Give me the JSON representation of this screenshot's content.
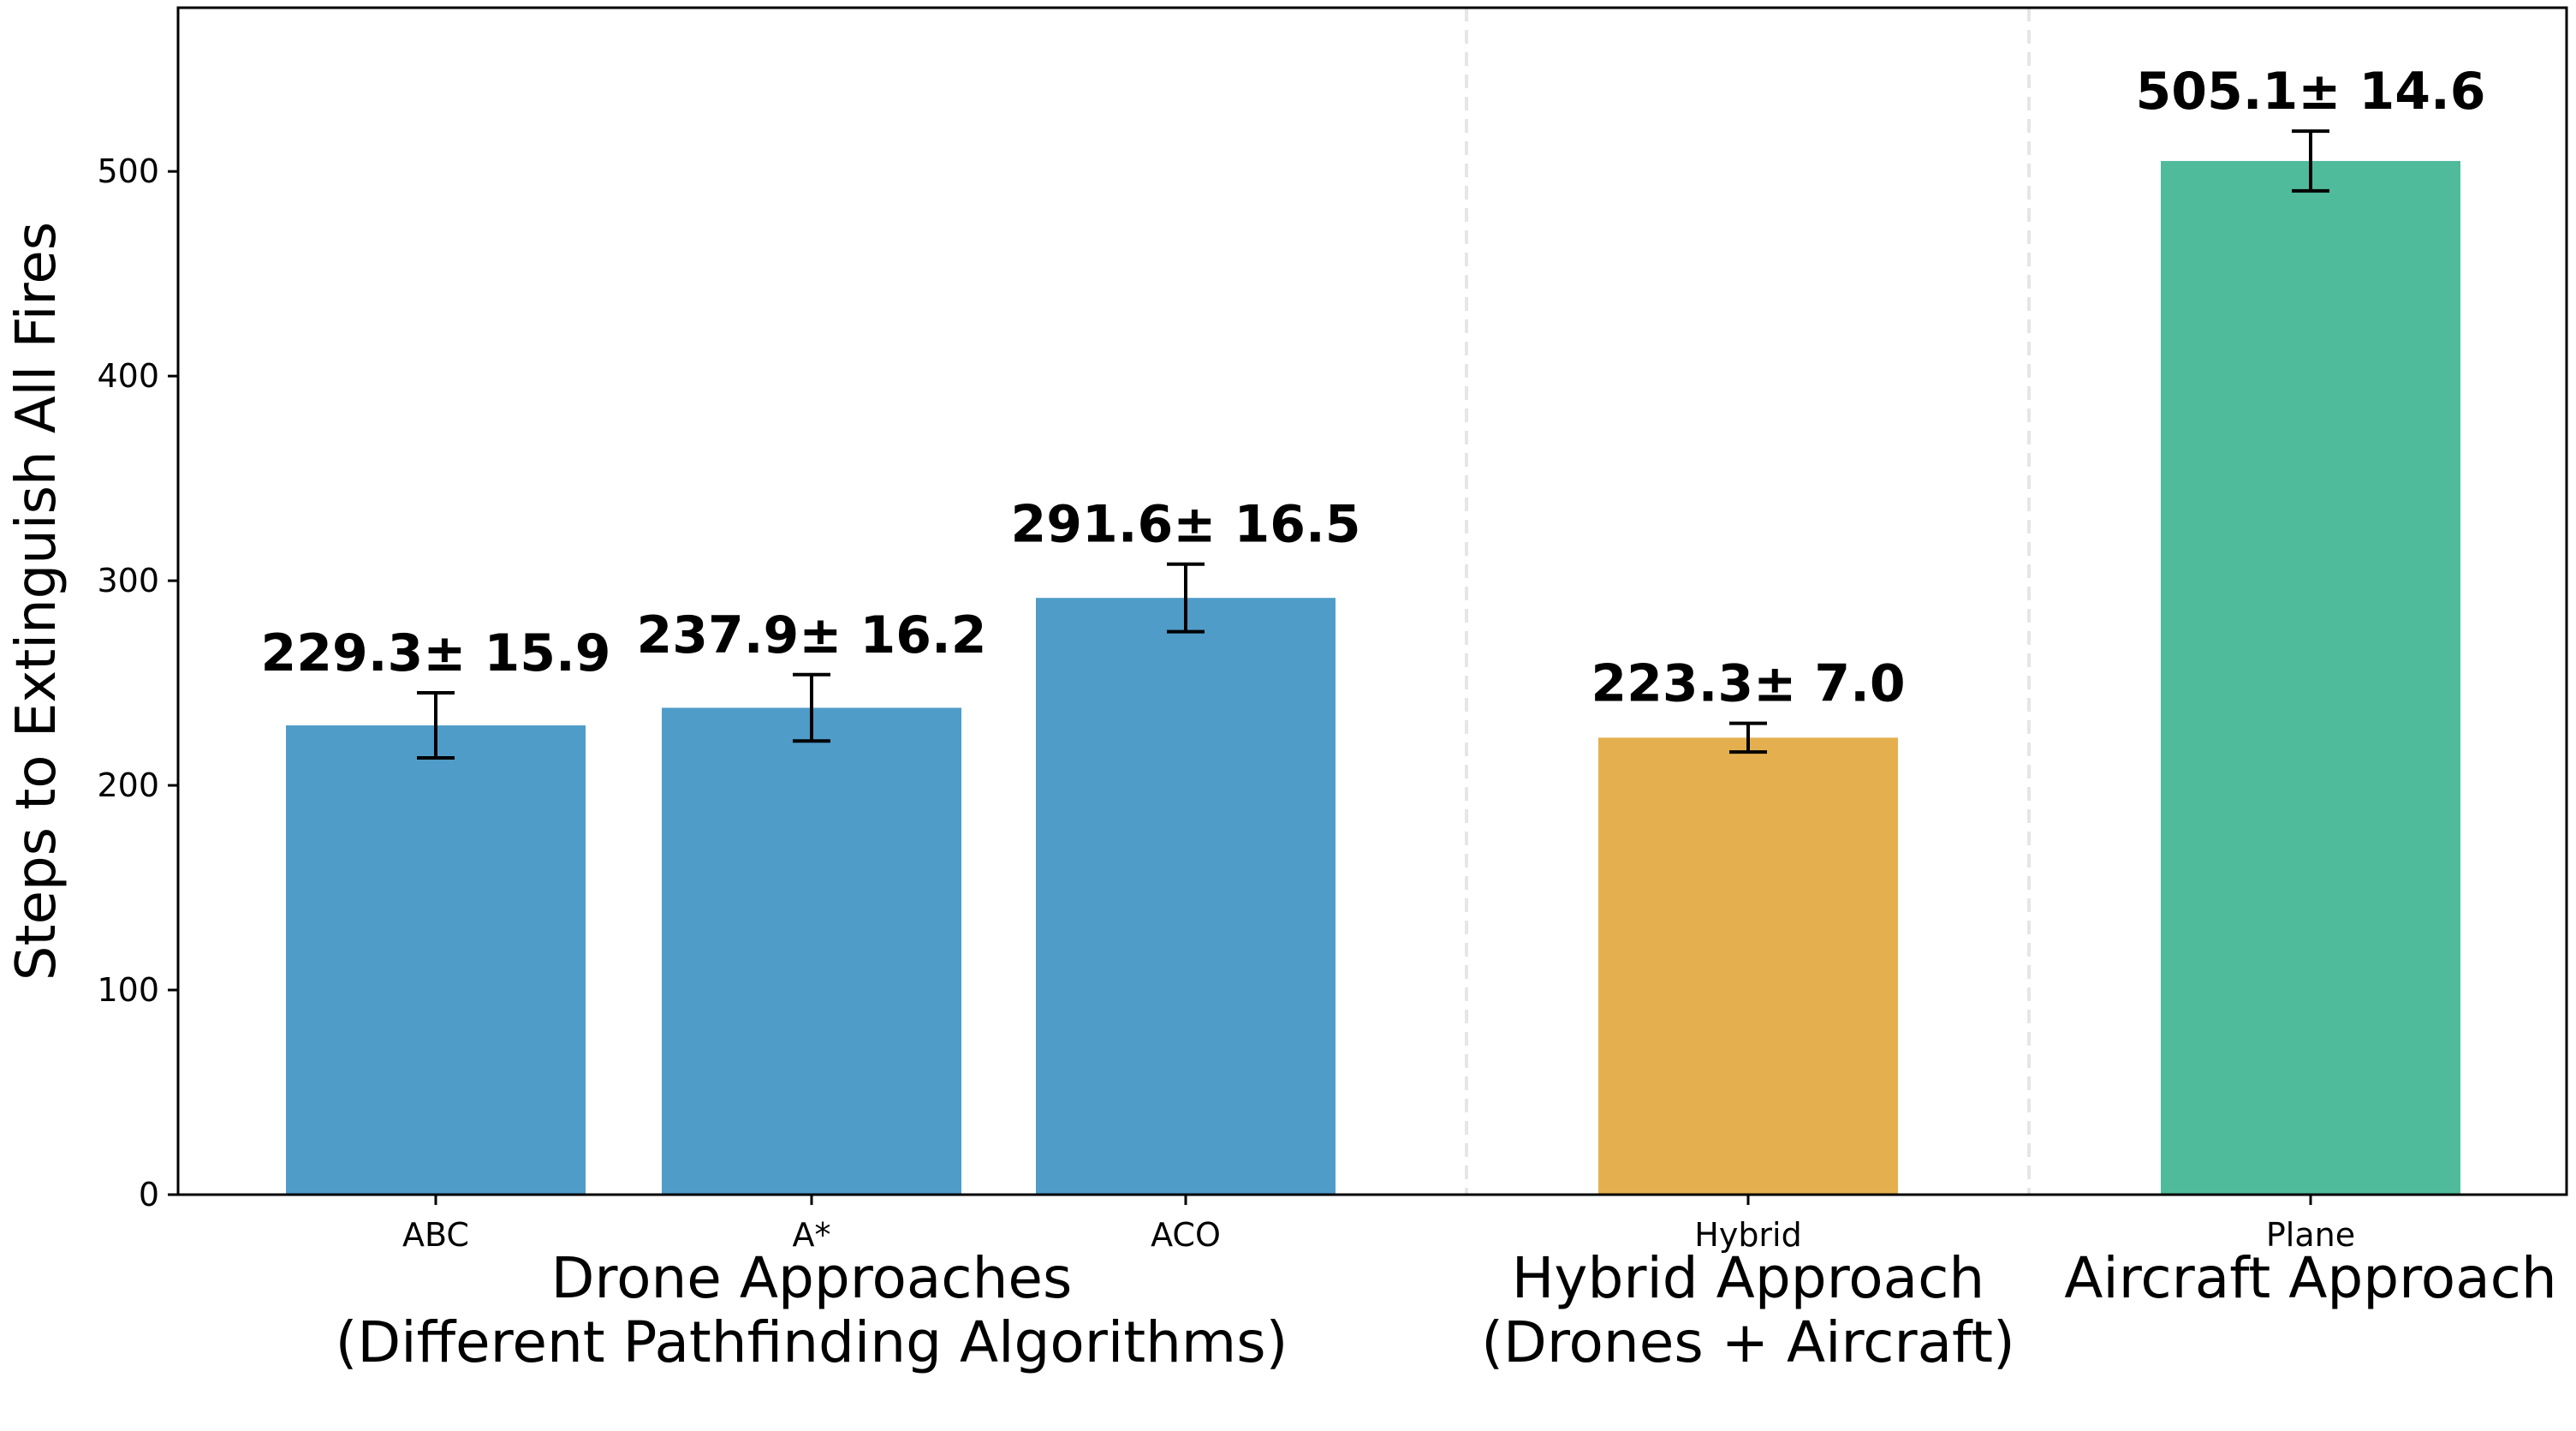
{
  "chart_data": {
    "type": "bar",
    "categories": [
      "ABC",
      "A*",
      "ACO",
      "Hybrid",
      "Plane"
    ],
    "values": [
      229.3,
      237.9,
      291.6,
      223.3,
      505.1
    ],
    "errors": [
      15.9,
      16.2,
      16.5,
      7.0,
      14.6
    ],
    "value_labels": [
      "229.3± 15.9",
      "237.9± 16.2",
      "291.6± 16.5",
      "223.3± 7.0",
      "505.1± 14.6"
    ],
    "bar_colors": [
      "#4f9cc9",
      "#4f9cc9",
      "#4f9cc9",
      "#e4b04f",
      "#50bb9b"
    ],
    "groups": [
      {
        "line1": "Drone Approaches",
        "line2": "(Different Pathfinding Algorithms)"
      },
      {
        "line1": "Hybrid Approach",
        "line2": "(Drones + Aircraft)"
      },
      {
        "line1": "Aircraft Approach",
        "line2": ""
      }
    ],
    "ylabel": "Steps to Extinguish All Fires",
    "xlabel": "",
    "title": "",
    "ylim": [
      0,
      580
    ],
    "yticks": [
      0,
      100,
      200,
      300,
      400,
      500
    ],
    "grid": false,
    "group_separators": "dashed-vertical"
  }
}
